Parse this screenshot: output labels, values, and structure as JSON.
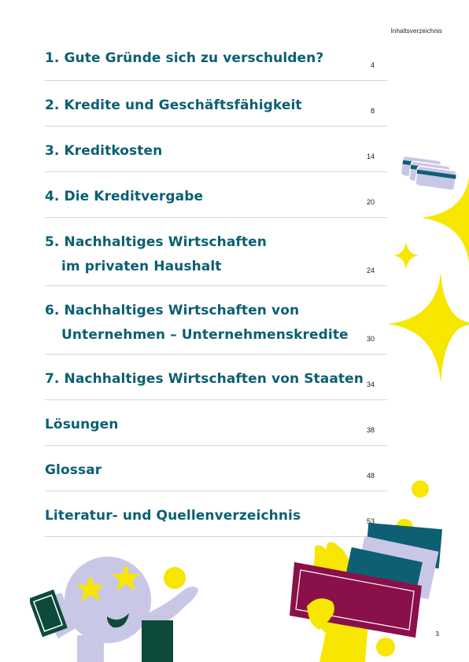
{
  "header": {
    "running_head": "Inhaltsverzeichnis"
  },
  "toc": [
    {
      "line1": "1. Gute Gründe sich zu verschulden?",
      "page": "4"
    },
    {
      "line1": "2. Kredite und Geschäftsfähigkeit",
      "page": "8"
    },
    {
      "line1": "3. Kreditkosten",
      "page": "14"
    },
    {
      "line1": "4. Die Kreditvergabe",
      "page": "20"
    },
    {
      "line1": "5. Nachhaltiges Wirtschaften",
      "line2": "im privaten Haushalt",
      "page": "24"
    },
    {
      "line1": "6. Nachhaltiges Wirtschaften von",
      "line2": "Unternehmen – Unternehmenskredite",
      "page": "30"
    },
    {
      "line1": "7. Nachhaltiges Wirtschaften von Staaten",
      "page": "34"
    },
    {
      "line1": "Lösungen",
      "page": "38"
    },
    {
      "line1": "Glossar",
      "page": "48"
    },
    {
      "line1": "Literatur- und Quellenverzeichnis",
      "page": "53"
    }
  ],
  "footer": {
    "page_number": "3"
  },
  "colors": {
    "heading": "#0a5f72",
    "yellow": "#f7e600",
    "lavender": "#c9c7e6",
    "dark_green": "#0d4a3c",
    "purple": "#8a1049",
    "petrol": "#0d5f73"
  }
}
